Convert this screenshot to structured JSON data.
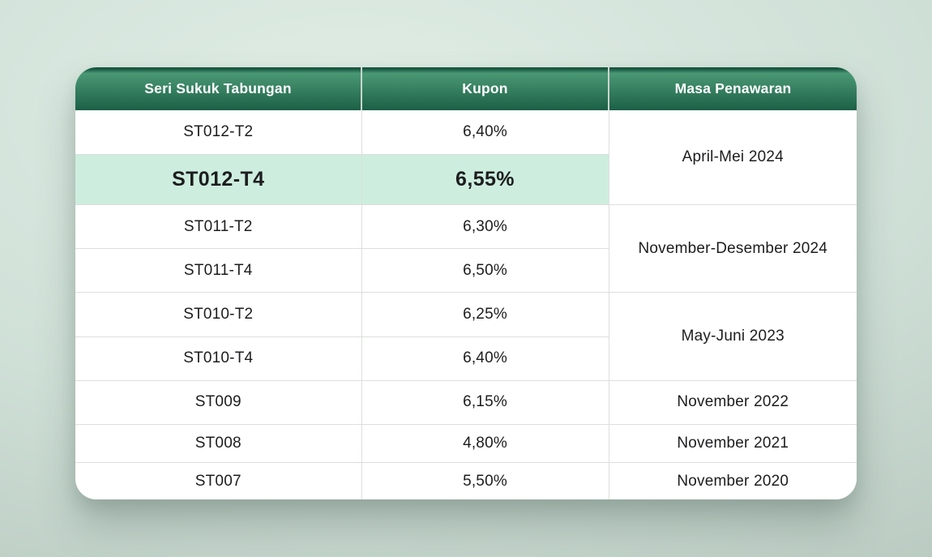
{
  "colors": {
    "page_bg_light": "#e0ede5",
    "page_bg_mid": "#cfe0d7",
    "page_bg_dark": "#b2c2b9",
    "card_bg": "#ffffff",
    "header_edge": "#17573f",
    "header_top": "#4a9874",
    "header_bottom": "#1c6047",
    "header_text": "#ffffff",
    "header_divider": "#ccd4cf",
    "grid_line": "#dcdfdc",
    "highlight_bg": "#cdeede",
    "body_text": "#1d1d1f"
  },
  "table": {
    "columns": [
      "Seri Sukuk Tabungan",
      "Kupon",
      "Masa Penawaran"
    ],
    "rows": [
      {
        "seri": "ST012-T2",
        "kupon": "6,40%",
        "masa": "April-Mei 2024",
        "masa_rowspan": 2,
        "highlight": false
      },
      {
        "seri": "ST012-T4",
        "kupon": "6,55%",
        "highlight": true
      },
      {
        "seri": "ST011-T2",
        "kupon": "6,30%",
        "masa": "November-Desember 2024",
        "masa_rowspan": 2,
        "highlight": false
      },
      {
        "seri": "ST011-T4",
        "kupon": "6,50%",
        "highlight": false
      },
      {
        "seri": "ST010-T2",
        "kupon": "6,25%",
        "masa": "May-Juni 2023",
        "masa_rowspan": 2,
        "highlight": false
      },
      {
        "seri": "ST010-T4",
        "kupon": "6,40%",
        "highlight": false
      },
      {
        "seri": "ST009",
        "kupon": "6,15%",
        "masa": "November 2022",
        "masa_rowspan": 1,
        "highlight": false
      },
      {
        "seri": "ST008",
        "kupon": "4,80%",
        "masa": "November 2021",
        "masa_rowspan": 1,
        "highlight": false
      },
      {
        "seri": "ST007",
        "kupon": "5,50%",
        "masa": "November 2020",
        "masa_rowspan": 1,
        "highlight": false
      }
    ]
  },
  "chart_data": {
    "type": "table",
    "columns": [
      "Seri Sukuk Tabungan",
      "Kupon",
      "Masa Penawaran"
    ],
    "rows": [
      [
        "ST012-T2",
        "6,40%",
        "April-Mei 2024"
      ],
      [
        "ST012-T4",
        "6,55%",
        "April-Mei 2024"
      ],
      [
        "ST011-T2",
        "6,30%",
        "November-Desember 2024"
      ],
      [
        "ST011-T4",
        "6,50%",
        "November-Desember 2024"
      ],
      [
        "ST010-T2",
        "6,25%",
        "May-Juni 2023"
      ],
      [
        "ST010-T4",
        "6,40%",
        "May-Juni 2023"
      ],
      [
        "ST009",
        "6,15%",
        "November 2022"
      ],
      [
        "ST008",
        "4,80%",
        "November 2021"
      ],
      [
        "ST007",
        "5,50%",
        "November 2020"
      ]
    ],
    "highlighted_row": "ST012-T4",
    "merged_period_groups": [
      {
        "masa": "April-Mei 2024",
        "rows": [
          "ST012-T2",
          "ST012-T4"
        ]
      },
      {
        "masa": "November-Desember 2024",
        "rows": [
          "ST011-T2",
          "ST011-T4"
        ]
      },
      {
        "masa": "May-Juni 2023",
        "rows": [
          "ST010-T2",
          "ST010-T4"
        ]
      }
    ]
  }
}
